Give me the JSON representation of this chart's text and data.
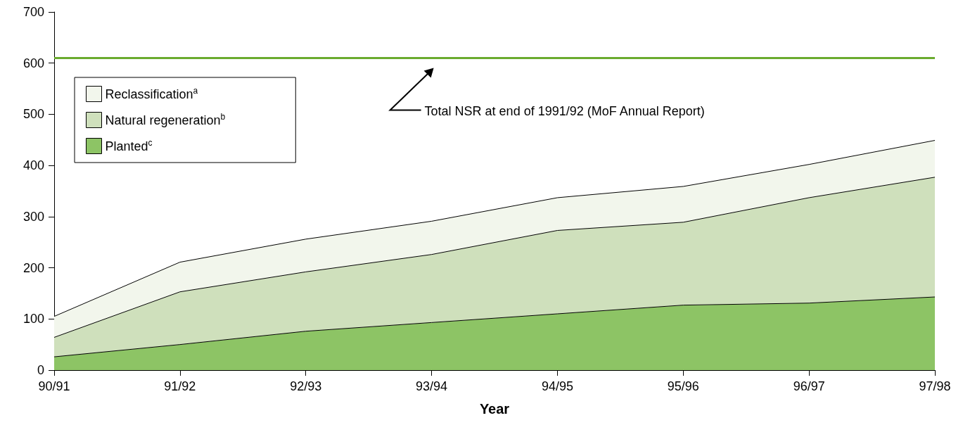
{
  "chart_data": {
    "type": "area",
    "stacked": true,
    "xlabel": "Year",
    "categories": [
      "90/91",
      "91/92",
      "92/93",
      "93/94",
      "94/95",
      "95/96",
      "96/97",
      "97/98"
    ],
    "series": [
      {
        "name": "Planted$^{c}$",
        "color": "#8dc465",
        "values": [
          26,
          50,
          76,
          93,
          110,
          127,
          131,
          143
        ]
      },
      {
        "name": "Natural regeneration$^{b}$",
        "color": "#cfe0bc",
        "values": [
          38,
          103,
          116,
          133,
          163,
          162,
          206,
          234
        ]
      },
      {
        "name": "Reclassification$^{a}$",
        "color": "#f2f6ec",
        "values": [
          41,
          58,
          64,
          65,
          64,
          70,
          65,
          72
        ]
      }
    ],
    "ylim": [
      0,
      700
    ],
    "yticks": [
      0,
      100,
      200,
      300,
      400,
      500,
      600,
      700
    ],
    "grid": false,
    "legend": "top left",
    "annotations": [
      "Total NSR at end of 1991/92 (MoF Annual Report)"
    ],
    "ref_lines": [
      {
        "axis": "y",
        "value": 610,
        "color": "#6aab2e",
        "line_style": "solid"
      }
    ]
  }
}
